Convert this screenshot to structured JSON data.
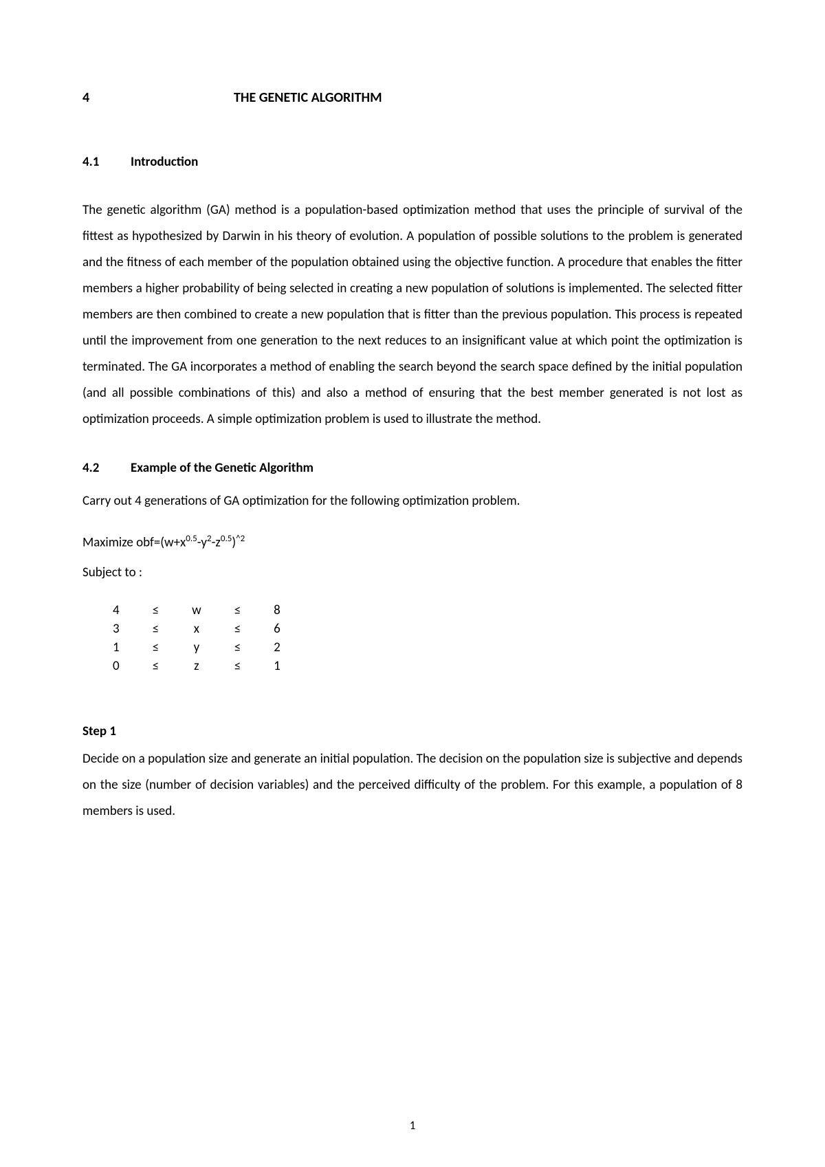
{
  "chapter": {
    "number": "4",
    "title": "THE GENETIC ALGORITHM"
  },
  "section_4_1": {
    "number": "4.1",
    "title": "Introduction",
    "body": "The genetic algorithm (GA) method is a population-based optimization method that uses the principle of survival of the fittest as hypothesized by Darwin in his theory of evolution. A population of possible solutions to the problem is generated and the fitness of each member of the population obtained using the objective function. A procedure that enables the fitter members a higher probability of being selected in creating a new population of solutions is implemented. The selected fitter members are then combined to create a new population that is fitter than the previous population. This process is repeated until the improvement from one generation to the next reduces to an insignificant value at which point the optimization is terminated. The GA incorporates a method of enabling the search beyond the search space defined by the initial population (and all possible combinations of this) and also a method of ensuring that the best member generated is not lost as optimization proceeds. A simple optimization problem is used to illustrate the method."
  },
  "section_4_2": {
    "number": "4.2",
    "title": "Example of the Genetic Algorithm",
    "intro": "Carry out 4 generations of GA optimization for the following optimization problem.",
    "formula_prefix": "Maximize obf=(w+x",
    "formula_exp1": "0.5",
    "formula_mid1": "-y",
    "formula_exp2": "2",
    "formula_mid2": "-z",
    "formula_exp3": "0.5",
    "formula_mid3": ")",
    "formula_exp4": "^2",
    "subject_to": "Subject to :",
    "constraints": [
      {
        "lo": "4",
        "op1": "≤",
        "var": "w",
        "op2": "≤",
        "hi": "8"
      },
      {
        "lo": "3",
        "op1": "≤",
        "var": "x",
        "op2": "≤",
        "hi": "6"
      },
      {
        "lo": "1",
        "op1": "≤",
        "var": "y",
        "op2": "≤",
        "hi": "2"
      },
      {
        "lo": "0",
        "op1": "≤",
        "var": "z",
        "op2": "≤",
        "hi": "1"
      }
    ]
  },
  "step1": {
    "title": "Step 1",
    "body": "Decide on a population size and generate an initial population. The decision on the population size is subjective and depends on the size (number of decision variables) and the perceived difficulty of the problem. For this example, a population of 8 members is used."
  },
  "page_number": "1"
}
